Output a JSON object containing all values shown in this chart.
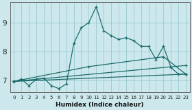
{
  "xlabel": "Humidex (Indice chaleur)",
  "background_color": "#cce8ec",
  "grid_color": "#a0cdd4",
  "line_color": "#1a6b6b",
  "xlim": [
    -0.5,
    23.5
  ],
  "ylim": [
    6.6,
    9.7
  ],
  "yticks": [
    7,
    8,
    9
  ],
  "xticks": [
    0,
    1,
    2,
    3,
    4,
    5,
    6,
    7,
    8,
    9,
    10,
    11,
    12,
    13,
    14,
    15,
    16,
    17,
    18,
    19,
    20,
    21,
    22,
    23
  ],
  "line1_x": [
    0,
    1,
    2,
    3,
    4,
    5,
    6,
    7,
    8,
    9,
    10,
    11,
    12,
    13,
    14,
    15,
    16,
    17,
    18,
    19,
    20,
    21,
    22,
    23
  ],
  "line1_y": [
    6.95,
    7.05,
    6.82,
    7.05,
    7.08,
    6.82,
    6.72,
    6.88,
    8.28,
    8.82,
    9.0,
    9.55,
    8.72,
    8.55,
    8.42,
    8.48,
    8.38,
    8.18,
    8.18,
    7.72,
    8.18,
    7.45,
    7.22,
    7.22
  ],
  "line2_x": [
    0,
    23
  ],
  "line2_y": [
    6.97,
    7.22
  ],
  "line3_x": [
    0,
    23
  ],
  "line3_y": [
    6.97,
    7.52
  ],
  "line4_x": [
    0,
    10,
    20,
    23
  ],
  "line4_y": [
    6.97,
    7.48,
    7.82,
    7.22
  ]
}
